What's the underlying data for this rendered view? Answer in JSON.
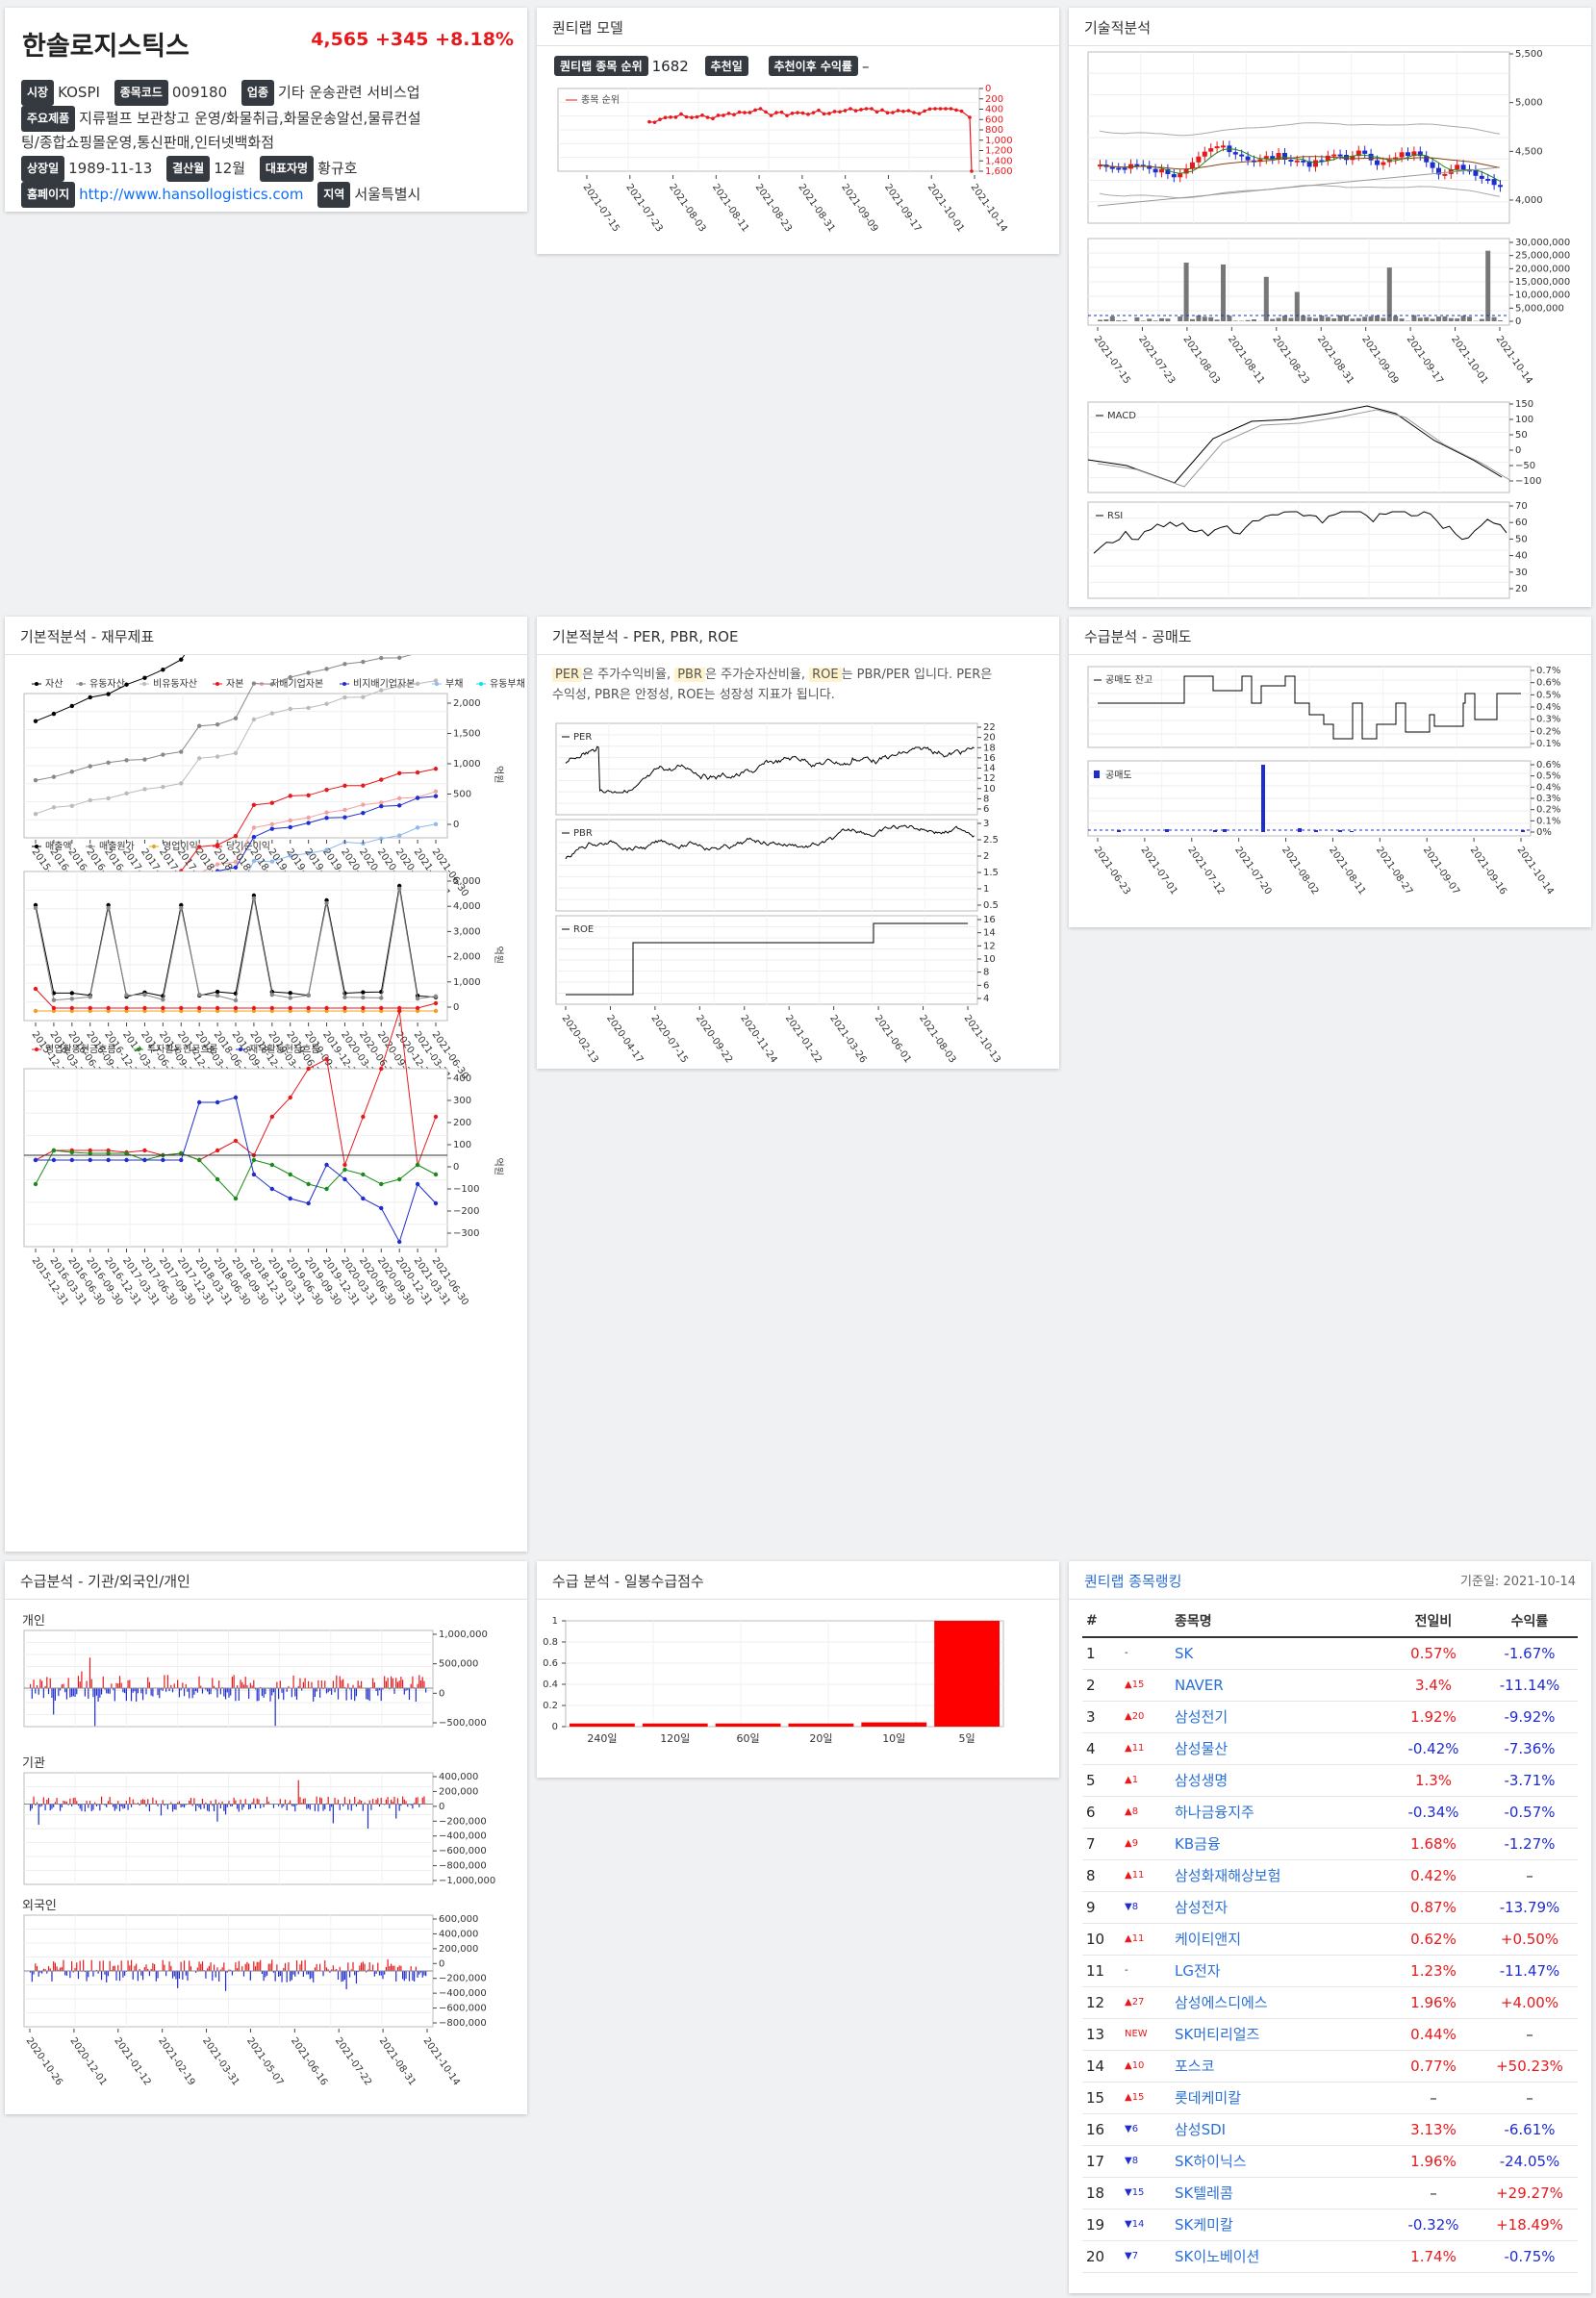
{
  "header": {
    "company": "한솔로지스틱스",
    "price": "4,565",
    "change": "+345",
    "change_pct": "+8.18%",
    "info": {
      "market_label": "시장",
      "market": "KOSPI",
      "code_label": "종목코드",
      "code": "009180",
      "industry_label": "업종",
      "industry": "기타 운송관련 서비스업",
      "products_label": "주요제품",
      "products_1": "지류펄프 보관창고 운영/화물취급,화물운송알선,물류컨설",
      "products_2": "팅/종합쇼핑몰운영,통신판매,인터넷백화점",
      "listed_label": "상장일",
      "listed": "1989-11-13",
      "fiscal_label": "결산월",
      "fiscal": "12월",
      "ceo_label": "대표자명",
      "ceo": "황규호",
      "homepage_label": "홈페이지",
      "homepage": "http://www.hansollogistics.com",
      "region_label": "지역",
      "region": "서울특별시"
    }
  },
  "panels": {
    "quant": "퀀티랩 모델",
    "tech": "기술적분석",
    "fin": "기본적분석 - 재무제표",
    "per": "기본적분석 - PER, PBR, ROE",
    "short": "수급분석 - 공매도",
    "investor": "수급분석 - 기관/외국인/개인",
    "daily": "수급 분석 - 일봉수급점수",
    "ranking": "퀀티랩 종목랭킹"
  },
  "quant": {
    "rank_label": "퀀티랩 종목 순위",
    "rank": "1682",
    "rec_label": "추천일",
    "rec": "",
    "ret_label": "추천이후 수익률",
    "ret": "–",
    "legend": "종목 순위",
    "y_ticks": [
      "0",
      "200",
      "400",
      "600",
      "800",
      "1,000",
      "1,200",
      "1,400",
      "1,600"
    ],
    "x_ticks": [
      "2021-07-15",
      "2021-07-23",
      "2021-08-03",
      "2021-08-11",
      "2021-08-23",
      "2021-08-31",
      "2021-09-09",
      "2021-09-17",
      "2021-10-01",
      "2021-10-14"
    ]
  },
  "tech": {
    "price_ticks": [
      "5,500",
      "5,000",
      "4,500",
      "4,000"
    ],
    "vol_ticks": [
      "30,000,000",
      "25,000,000",
      "20,000,000",
      "15,000,000",
      "10,000,000",
      "5,000,000",
      "0"
    ],
    "x_ticks": [
      "2021-07-15",
      "2021-07-23",
      "2021-08-03",
      "2021-08-11",
      "2021-08-23",
      "2021-08-31",
      "2021-09-09",
      "2021-09-17",
      "2021-10-01",
      "2021-10-14"
    ],
    "macd_label": "MACD",
    "macd_ticks": [
      "150",
      "100",
      "50",
      "0",
      "−50",
      "−100"
    ],
    "rsi_label": "RSI",
    "rsi_ticks": [
      "70",
      "60",
      "50",
      "40",
      "30",
      "20"
    ]
  },
  "fin": {
    "legend1": [
      "자산",
      "유동자산",
      "비유동자산",
      "자본",
      "지배기업자본",
      "비지배기업자본",
      "부채",
      "유동부채"
    ],
    "colors1": [
      "#000000",
      "#888888",
      "#bbbbbb",
      "#e8191c",
      "#f4a0a0",
      "#1f2ccf",
      "#8fb8f0",
      "#00e5ee"
    ],
    "ticks1": [
      "2,000",
      "1,500",
      "1,000",
      "500",
      "0"
    ],
    "legend2": [
      "매출액",
      "매출원가",
      "영업이익",
      "당기순이익"
    ],
    "colors2": [
      "#000000",
      "#888888",
      "#f0a020",
      "#e8191c"
    ],
    "ticks2": [
      "5,000",
      "4,000",
      "3,000",
      "2,000",
      "1,000",
      "0"
    ],
    "legend3": [
      "영업활동현금흐름",
      "투자활동현금흐름",
      "재무활동현금흐름"
    ],
    "colors3": [
      "#e8191c",
      "#1a8a1a",
      "#1f2ccf"
    ],
    "ticks3": [
      "400",
      "300",
      "200",
      "100",
      "0",
      "−100",
      "−200",
      "−300"
    ],
    "unit": "억원",
    "x_ticks": [
      "2015-12-31",
      "2016-03-31",
      "2016-06-30",
      "2016-09-30",
      "2016-12-31",
      "2017-03-31",
      "2017-06-30",
      "2017-09-30",
      "2017-12-31",
      "2018-03-31",
      "2018-06-30",
      "2018-09-30",
      "2018-12-31",
      "2019-03-31",
      "2019-06-30",
      "2019-09-30",
      "2019-12-31",
      "2020-03-31",
      "2020-06-30",
      "2020-09-30",
      "2020-12-31",
      "2021-03-31",
      "2021-06-30"
    ]
  },
  "per": {
    "t_per": "PER",
    "t1": "은 주가수익비율, ",
    "t_pbr": "PBR",
    "t2": "은 주가순자산비율, ",
    "t_roe": "ROE",
    "t3": "는 PBR/PER 입니다. PER은",
    "t4": "수익성, PBR은 안정성, ROE는 성장성 지표가 됩니다.",
    "per_label": "PER",
    "per_ticks": [
      "22",
      "20",
      "18",
      "16",
      "14",
      "12",
      "10",
      "8",
      "6"
    ],
    "pbr_label": "PBR",
    "pbr_ticks": [
      "3",
      "2.5",
      "2",
      "1.5",
      "1",
      "0.5"
    ],
    "roe_label": "ROE",
    "roe_ticks": [
      "16",
      "14",
      "12",
      "10",
      "8",
      "6",
      "4"
    ],
    "x_ticks": [
      "2020-02-13",
      "2020-04-17",
      "2020-07-15",
      "2020-09-22",
      "2020-11-24",
      "2021-01-22",
      "2021-03-26",
      "2021-06-01",
      "2021-08-03",
      "2021-10-13"
    ]
  },
  "short": {
    "balance_label": "공매도 잔고",
    "balance_ticks": [
      "0.7%",
      "0.6%",
      "0.5%",
      "0.4%",
      "0.3%",
      "0.2%",
      "0.1%"
    ],
    "vol_label": "공매도",
    "vol_ticks": [
      "0.6%",
      "0.5%",
      "0.4%",
      "0.3%",
      "0.2%",
      "0.1%",
      "0%"
    ],
    "x_ticks": [
      "2021-06-23",
      "2021-07-01",
      "2021-07-12",
      "2021-07-20",
      "2021-08-02",
      "2021-08-11",
      "2021-08-27",
      "2021-09-07",
      "2021-09-16",
      "2021-10-14"
    ]
  },
  "investor": {
    "p1": "개인",
    "p1_ticks": [
      "1,000,000",
      "500,000",
      "0",
      "−500,000"
    ],
    "p2": "기관",
    "p2_ticks": [
      "400,000",
      "200,000",
      "0",
      "−200,000",
      "−400,000",
      "−600,000",
      "−800,000",
      "−1,000,000"
    ],
    "p3": "외국인",
    "p3_ticks": [
      "600,000",
      "400,000",
      "200,000",
      "0",
      "−200,000",
      "−400,000",
      "−600,000",
      "−800,000"
    ],
    "x_ticks": [
      "2020-10-26",
      "2020-12-01",
      "2021-01-12",
      "2021-02-19",
      "2021-03-31",
      "2021-05-07",
      "2021-06-16",
      "2021-07-22",
      "2021-08-31",
      "2021-10-14"
    ]
  },
  "daily": {
    "y_ticks": [
      "1",
      "0.8",
      "0.6",
      "0.4",
      "0.2",
      "0"
    ],
    "chart_data": {
      "type": "bar",
      "categories": [
        "240일",
        "120일",
        "60일",
        "20일",
        "10일",
        "5일"
      ],
      "values": [
        0.03,
        0.03,
        0.03,
        0.03,
        0.04,
        1.0
      ],
      "ylim": [
        0,
        1
      ],
      "color": "#ff0000"
    }
  },
  "ranking": {
    "title": "퀀티랩 종목랭킹",
    "date": "기준일: 2021-10-14",
    "cols": [
      "#",
      "종목명",
      "전일비",
      "수익률"
    ],
    "rows": [
      {
        "no": "1",
        "mv": "-",
        "dir": "same",
        "name": "SK",
        "chg": "0.57%",
        "chgc": "up",
        "ret": "-1.67%",
        "retc": "dn"
      },
      {
        "no": "2",
        "mv": "▲15",
        "dir": "up",
        "name": "NAVER",
        "chg": "3.4%",
        "chgc": "up",
        "ret": "-11.14%",
        "retc": "dn"
      },
      {
        "no": "3",
        "mv": "▲20",
        "dir": "up",
        "name": "삼성전기",
        "chg": "1.92%",
        "chgc": "up",
        "ret": "-9.92%",
        "retc": "dn"
      },
      {
        "no": "4",
        "mv": "▲11",
        "dir": "up",
        "name": "삼성물산",
        "chg": "-0.42%",
        "chgc": "dn",
        "ret": "-7.36%",
        "retc": "dn"
      },
      {
        "no": "5",
        "mv": "▲1",
        "dir": "up",
        "name": "삼성생명",
        "chg": "1.3%",
        "chgc": "up",
        "ret": "-3.71%",
        "retc": "dn"
      },
      {
        "no": "6",
        "mv": "▲8",
        "dir": "up",
        "name": "하나금융지주",
        "chg": "-0.34%",
        "chgc": "dn",
        "ret": "-0.57%",
        "retc": "dn"
      },
      {
        "no": "7",
        "mv": "▲9",
        "dir": "up",
        "name": "KB금융",
        "chg": "1.68%",
        "chgc": "up",
        "ret": "-1.27%",
        "retc": "dn"
      },
      {
        "no": "8",
        "mv": "▲11",
        "dir": "up",
        "name": "삼성화재해상보험",
        "chg": "0.42%",
        "chgc": "up",
        "ret": "–",
        "retc": "nt"
      },
      {
        "no": "9",
        "mv": "▼8",
        "dir": "dn",
        "name": "삼성전자",
        "chg": "0.87%",
        "chgc": "up",
        "ret": "-13.79%",
        "retc": "dn"
      },
      {
        "no": "10",
        "mv": "▲11",
        "dir": "up",
        "name": "케이티앤지",
        "chg": "0.62%",
        "chgc": "up",
        "ret": "+0.50%",
        "retc": "up"
      },
      {
        "no": "11",
        "mv": "-",
        "dir": "same",
        "name": "LG전자",
        "chg": "1.23%",
        "chgc": "up",
        "ret": "-11.47%",
        "retc": "dn"
      },
      {
        "no": "12",
        "mv": "▲27",
        "dir": "up",
        "name": "삼성에스디에스",
        "chg": "1.96%",
        "chgc": "up",
        "ret": "+4.00%",
        "retc": "up"
      },
      {
        "no": "13",
        "mv": "NEW",
        "dir": "up",
        "name": "SK머티리얼즈",
        "chg": "0.44%",
        "chgc": "up",
        "ret": "–",
        "retc": "nt"
      },
      {
        "no": "14",
        "mv": "▲10",
        "dir": "up",
        "name": "포스코",
        "chg": "0.77%",
        "chgc": "up",
        "ret": "+50.23%",
        "retc": "up"
      },
      {
        "no": "15",
        "mv": "▲15",
        "dir": "up",
        "name": "롯데케미칼",
        "chg": "–",
        "chgc": "nt",
        "ret": "–",
        "retc": "nt"
      },
      {
        "no": "16",
        "mv": "▼6",
        "dir": "dn",
        "name": "삼성SDI",
        "chg": "3.13%",
        "chgc": "up",
        "ret": "-6.61%",
        "retc": "dn"
      },
      {
        "no": "17",
        "mv": "▼8",
        "dir": "dn",
        "name": "SK하이닉스",
        "chg": "1.96%",
        "chgc": "up",
        "ret": "-24.05%",
        "retc": "dn"
      },
      {
        "no": "18",
        "mv": "▼15",
        "dir": "dn",
        "name": "SK텔레콤",
        "chg": "–",
        "chgc": "nt",
        "ret": "+29.27%",
        "retc": "up"
      },
      {
        "no": "19",
        "mv": "▼14",
        "dir": "dn",
        "name": "SK케미칼",
        "chg": "-0.32%",
        "chgc": "dn",
        "ret": "+18.49%",
        "retc": "up"
      },
      {
        "no": "20",
        "mv": "▼7",
        "dir": "dn",
        "name": "SK이노베이션",
        "chg": "1.74%",
        "chgc": "up",
        "ret": "-0.75%",
        "retc": "dn"
      }
    ]
  }
}
